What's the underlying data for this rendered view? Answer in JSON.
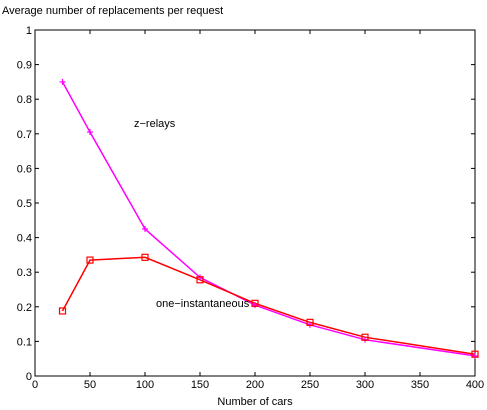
{
  "chart_data": {
    "type": "line",
    "title": "Average number of replacements per request",
    "xlabel": "Number of cars",
    "ylabel": "",
    "xlim": [
      0,
      400
    ],
    "ylim": [
      0,
      1
    ],
    "xticks": [
      0,
      50,
      100,
      150,
      200,
      250,
      300,
      350,
      400
    ],
    "yticks": [
      0,
      0.1,
      0.2,
      0.3,
      0.4,
      0.5,
      0.6,
      0.7,
      0.8,
      0.9,
      1
    ],
    "x_tick_labels": [
      "0",
      "50",
      "100",
      "150",
      "200",
      "250",
      "300",
      "350",
      "400"
    ],
    "y_tick_labels": [
      "0",
      "0.1",
      "0.2",
      "0.3",
      "0.4",
      "0.5",
      "0.6",
      "0.7",
      "0.8",
      "0.9",
      "1"
    ],
    "grid": false,
    "series": [
      {
        "name": "z−relays",
        "color": "#ff00ff",
        "marker": "plus",
        "x": [
          25,
          50,
          100,
          150,
          200,
          250,
          300,
          400
        ],
        "values": [
          0.85,
          0.705,
          0.425,
          0.285,
          0.205,
          0.148,
          0.105,
          0.058
        ]
      },
      {
        "name": "one−instantaneous",
        "color": "#ff0000",
        "marker": "square",
        "x": [
          25,
          50,
          100,
          150,
          200,
          250,
          300,
          400
        ],
        "values": [
          0.188,
          0.335,
          0.343,
          0.278,
          0.21,
          0.155,
          0.112,
          0.063
        ]
      }
    ],
    "annotations": [
      {
        "text": "z−relays",
        "x": 90,
        "y": 0.72
      },
      {
        "text": "one−instantaneous",
        "x": 110,
        "y": 0.2
      }
    ]
  }
}
